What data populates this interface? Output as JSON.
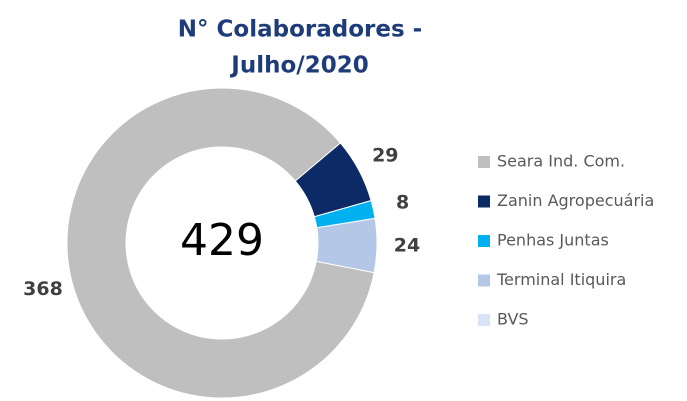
{
  "chart_data": {
    "type": "donut",
    "title": [
      "N° Colaboradores -",
      "Julho/2020"
    ],
    "total": 429,
    "categories": [
      "Seara Ind. Com.",
      "Zanin Agropecuária",
      "Penhas Juntas",
      "Terminal Itiquira",
      "BVS"
    ],
    "values": [
      368,
      29,
      8,
      24,
      0
    ],
    "colors": [
      "#bfbfbf",
      "#0c2a66",
      "#00b0f0",
      "#b4c7e7",
      "#dae3f3"
    ],
    "legend": "right"
  }
}
